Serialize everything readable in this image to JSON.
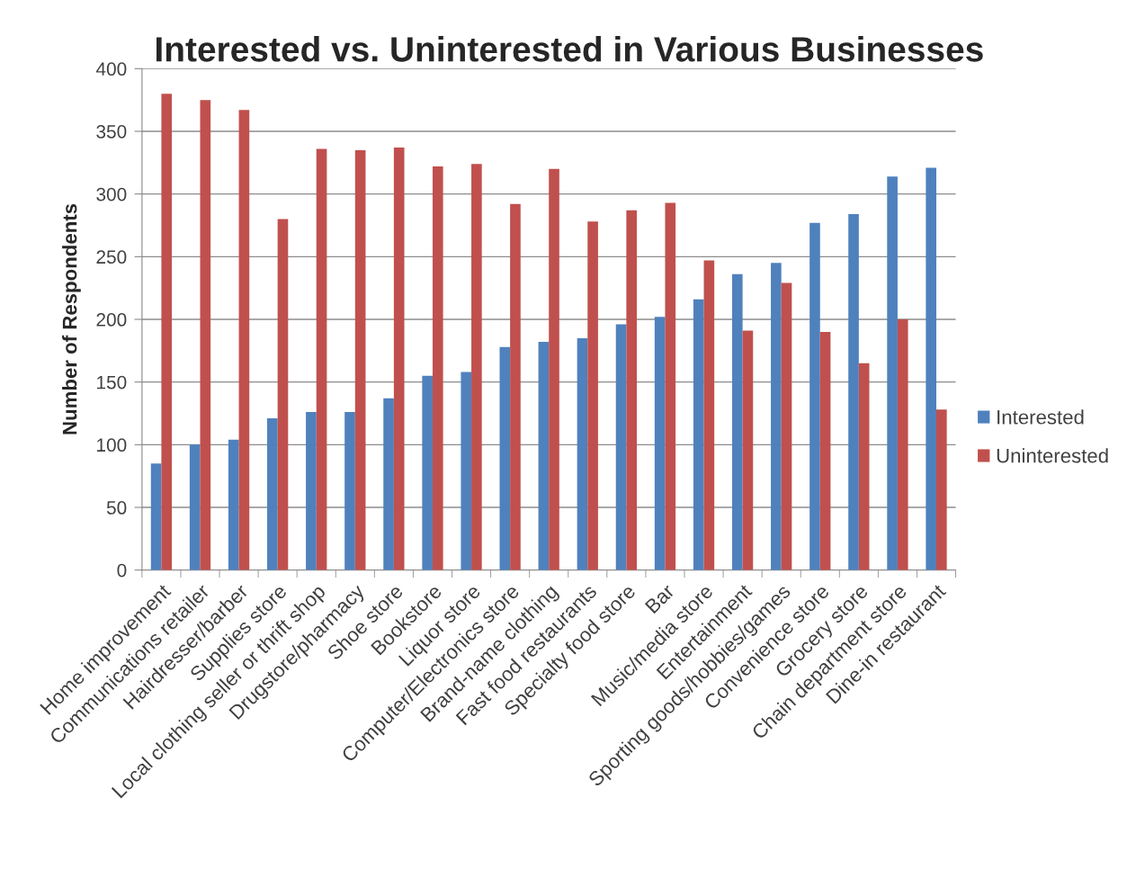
{
  "chart_data": {
    "type": "bar",
    "title": "Interested vs. Uninterested in Various Businesses",
    "ylabel": "Number of Respondents",
    "categories": [
      "Home improvement",
      "Communications retailer",
      "Hairdresser/barber",
      "Supplies store",
      "Local clothing seller or thrift shop",
      "Drugstore/pharmacy",
      "Shoe store",
      "Bookstore",
      "Liquor store",
      "Computer/Electronics store",
      "Brand-name clothing",
      "Fast food restaurants",
      "Specialty food store",
      "Bar",
      "Music/media store",
      "Entertainment",
      "Sporting goods/hobbies/games",
      "Convenience store",
      "Grocery store",
      "Chain department store",
      "Dine-in restaurant"
    ],
    "series": [
      {
        "name": "Interested",
        "color": "#4f81bd",
        "values": [
          85,
          100,
          104,
          121,
          126,
          126,
          137,
          155,
          158,
          178,
          182,
          185,
          196,
          202,
          216,
          236,
          245,
          277,
          284,
          314,
          321
        ]
      },
      {
        "name": "Uninterested",
        "color": "#c0504d",
        "values": [
          380,
          375,
          367,
          280,
          336,
          335,
          337,
          322,
          324,
          292,
          320,
          278,
          287,
          293,
          247,
          191,
          229,
          190,
          165,
          200,
          128
        ]
      }
    ],
    "ylim": [
      0,
      400
    ],
    "yticks": [
      0,
      50,
      100,
      150,
      200,
      250,
      300,
      350,
      400
    ],
    "grid": "y",
    "legend": "right"
  }
}
